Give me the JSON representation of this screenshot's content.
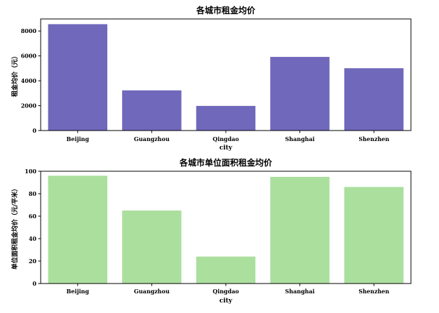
{
  "chart_data": [
    {
      "type": "bar",
      "title": "各城市租金均价",
      "xlabel": "city",
      "ylabel": "租金均价（元）",
      "categories": [
        "Beijing",
        "Guangzhou",
        "Qingdao",
        "Shanghai",
        "Shenzhen"
      ],
      "values": [
        8550,
        3230,
        1980,
        5920,
        5010
      ],
      "ylim": [
        0,
        8970
      ],
      "yticks": [
        0,
        2000,
        4000,
        6000,
        8000
      ],
      "color": "#7068bb",
      "grid": false
    },
    {
      "type": "bar",
      "title": "各城市单位面积租金均价",
      "xlabel": "city",
      "ylabel": "单位面积租金均价（元/平米）",
      "categories": [
        "Beijing",
        "Guangzhou",
        "Qingdao",
        "Shanghai",
        "Shenzhen"
      ],
      "values": [
        96,
        65,
        24,
        95,
        86
      ],
      "ylim": [
        0,
        100
      ],
      "yticks": [
        0,
        20,
        40,
        60,
        80,
        100
      ],
      "color": "#abdf9e",
      "grid": false
    }
  ]
}
